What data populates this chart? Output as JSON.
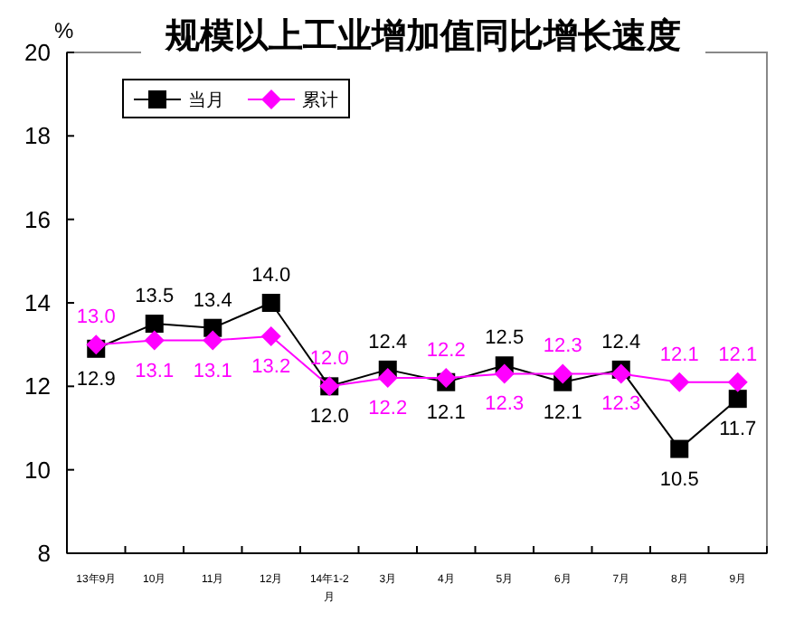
{
  "chart_data": {
    "type": "line",
    "title": "规模以上工业增加值同比增长速度",
    "ylabel": "%",
    "categories": [
      "13年9月",
      "10月",
      "11月",
      "12月",
      "14年1-2月",
      "3月",
      "4月",
      "5月",
      "6月",
      "7月",
      "8月",
      "9月"
    ],
    "series": [
      {
        "name": "当月",
        "color": "#000000",
        "marker": "square",
        "values": [
          12.9,
          13.5,
          13.4,
          14.0,
          12.0,
          12.4,
          12.1,
          12.5,
          12.1,
          12.4,
          10.5,
          11.7
        ],
        "value_labels": [
          "12.9",
          "13.5",
          "13.4",
          "14.0",
          "12.0",
          "12.4",
          "12.1",
          "12.5",
          "12.1",
          "12.4",
          "10.5",
          "11.7"
        ]
      },
      {
        "name": "累计",
        "color": "#ff00ff",
        "marker": "diamond",
        "values": [
          13.0,
          13.1,
          13.1,
          13.2,
          12.0,
          12.2,
          12.2,
          12.3,
          12.3,
          12.3,
          12.1,
          12.1
        ],
        "value_labels": [
          "13.0",
          "13.1",
          "13.1",
          "13.2",
          "12.0",
          "12.2",
          "12.2",
          "12.3",
          "12.3",
          "12.3",
          "12.1",
          "12.1"
        ]
      }
    ],
    "ylim": [
      8,
      20
    ],
    "yticks": [
      8,
      10,
      12,
      14,
      16,
      18,
      20
    ],
    "grid": false,
    "legend": "top left"
  }
}
